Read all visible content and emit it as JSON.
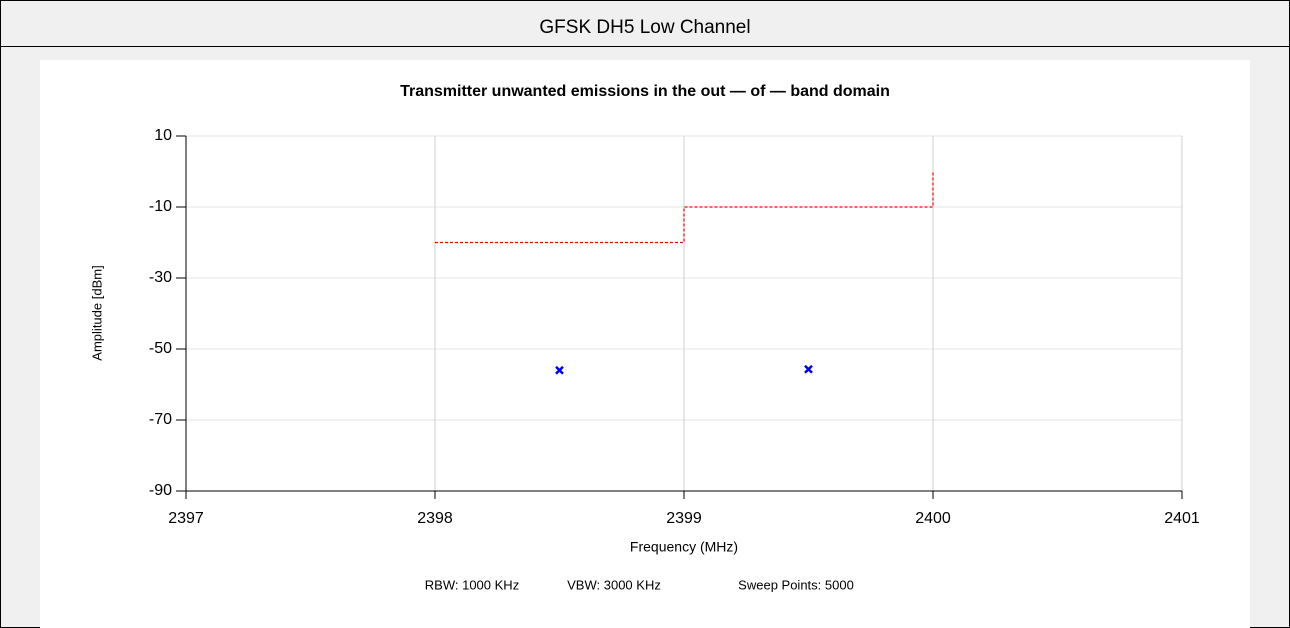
{
  "header": "GFSK DH5 Low Channel",
  "chart_data": {
    "type": "line",
    "title": "Transmitter unwanted emissions in the out — of — band domain",
    "x_label": "Frequency (MHz)",
    "y_label": "Amplitude [dBm]",
    "notes": [
      "RBW: 1000 KHz",
      "VBW: 3000 KHz",
      "Sweep Points: 5000"
    ],
    "xlim": [
      2397,
      2401
    ],
    "xticks": [
      2397,
      2398,
      2399,
      2400,
      2401
    ],
    "ylim": [
      -90,
      10
    ],
    "yticks": [
      10,
      -10,
      -30,
      -50,
      -70,
      -90
    ],
    "grid": true,
    "series": [
      {
        "type": "line",
        "color": "#ff0000",
        "dashed": true,
        "x": [
          2398,
          2399,
          2399,
          2400,
          2400
        ],
        "values": [
          -20,
          -20,
          -10,
          -10,
          0
        ]
      },
      {
        "type": "scatter",
        "color": "#0000ff",
        "marker": "x",
        "x": [
          2398.5,
          2399.5
        ],
        "values": [
          -56.0,
          -55.7
        ]
      }
    ]
  }
}
